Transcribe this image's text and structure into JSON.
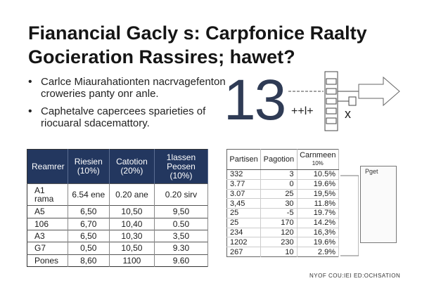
{
  "title": "Fianancial Gacly s: Carpfonice Raalty Gocieration Rassires; hawet?",
  "bullets": [
    "Carlce Miaurahationten nacrvagefenton croweries panty onr anle.",
    "Caphetalve capercees sparieties of riocuaral sdacemattory."
  ],
  "big_number": "13",
  "formula": "++l+",
  "x_mark": "x",
  "table1": {
    "headers": [
      "Reamrer",
      "Riesien (10%)",
      "Catotion (20%)",
      "1lassen Peosen (10%)"
    ],
    "rows": [
      [
        "A1 rama",
        "6.54 ene",
        "0.20 ane",
        "0.20 sirv"
      ],
      [
        "A5",
        "6,50",
        "10,50",
        "9,50"
      ],
      [
        "106",
        "6,70",
        "10,40",
        "0.50"
      ],
      [
        "A3",
        "6,50",
        "10,30",
        "3,50"
      ],
      [
        "G7",
        "0,50",
        "10,50",
        "9.30"
      ],
      [
        "Pones",
        "8,60",
        "1100",
        "9.60"
      ]
    ]
  },
  "table2": {
    "headers": [
      "Partisen",
      "Pagotion",
      "Carnmeen"
    ],
    "header_sub": "10%",
    "rows": [
      [
        "332",
        "3",
        "10.5%"
      ],
      [
        "3.77",
        "0",
        "19.6%"
      ],
      [
        "3.07",
        "25",
        "19,5%"
      ],
      [
        "3,45",
        "30",
        "11.8%"
      ],
      [
        "25",
        "-5",
        "19.7%"
      ],
      [
        "25",
        "170",
        "14.2%"
      ],
      [
        "234",
        "120",
        "16,3%"
      ],
      [
        "1202",
        "230",
        "19.6%"
      ],
      [
        "267",
        "10",
        "2.9%"
      ]
    ]
  },
  "page_label": "Pget",
  "footer": "NYOF COU:IEI ED:OCHSATION",
  "colors": {
    "header_navy": "#23375f",
    "number": "#2f3b55"
  }
}
